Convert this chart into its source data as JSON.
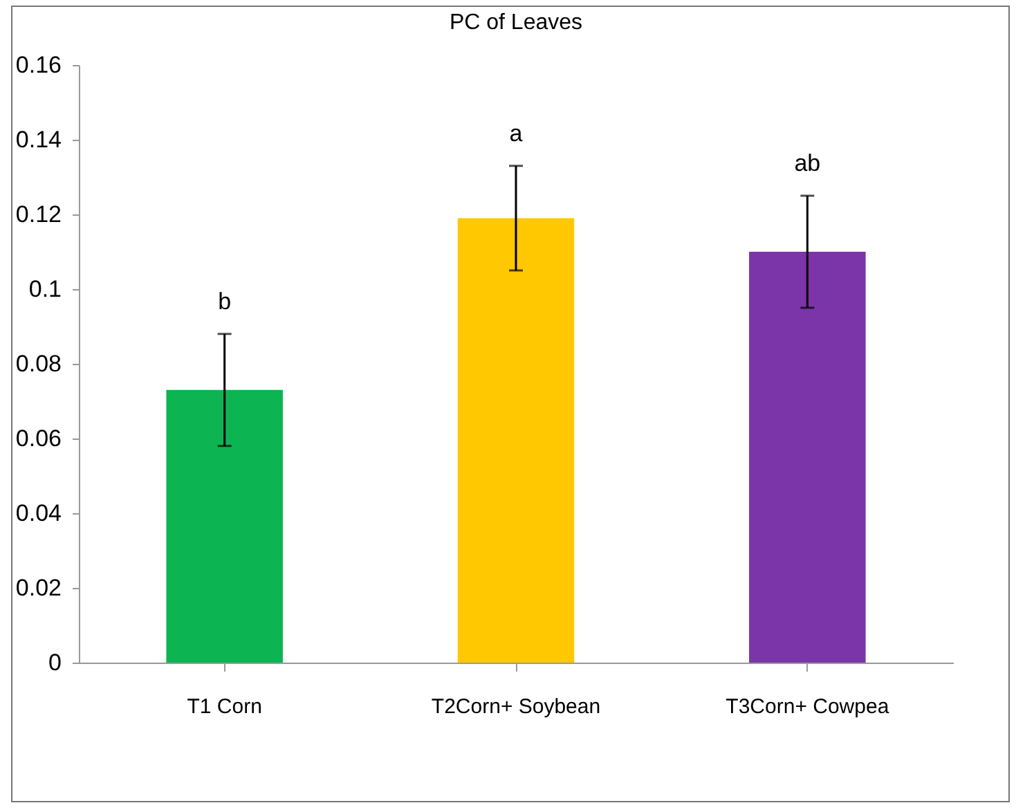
{
  "chart_data": {
    "type": "bar",
    "title": "PC of Leaves",
    "categories": [
      "T1 Corn",
      "T2Corn+ Soybean",
      "T3Corn+ Cowpea"
    ],
    "values": [
      0.073,
      0.119,
      0.11
    ],
    "colors": [
      "#0cb552",
      "#ffc800",
      "#7b35a8"
    ],
    "errors": [
      0.015,
      0.014,
      0.015
    ],
    "ylim": [
      0,
      0.16
    ],
    "yticks": [
      0,
      0.02,
      0.04,
      0.06,
      0.08,
      0.1,
      0.12,
      0.14,
      0.16
    ],
    "annotations": [
      {
        "text": "b",
        "x": "T1 Corn",
        "y": 0.088
      },
      {
        "text": "a",
        "x": "T2Corn+ Soybean",
        "y": 0.133
      },
      {
        "text": "ab",
        "x": "T3Corn+ Cowpea",
        "y": 0.125
      }
    ]
  }
}
